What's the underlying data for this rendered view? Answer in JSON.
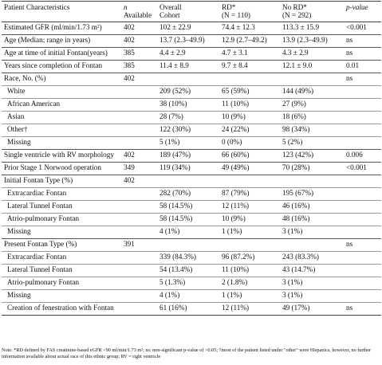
{
  "header": {
    "col0": "Patient Characteristics",
    "col1_line1": "n",
    "col1_line2": "Available",
    "col2_line1": "Overall",
    "col2_line2": "Cohort",
    "col3_line1": "RD*",
    "col3_line2": "(N = 110)",
    "col4_line1": "No RD*",
    "col4_line2": "(N = 292)",
    "col5": "p-value"
  },
  "rows": [
    {
      "label": "Estimated GFR (ml/min/1.73 m²)",
      "n": "402",
      "overall": "102 ± 22.9",
      "rd": "74.4 ± 12.3",
      "nord": "113.3 ± 15.9",
      "p": "<0.001",
      "style": "sep"
    },
    {
      "label": "Age (Median; range in years)",
      "n": "402",
      "overall": "13.7 (2.3–49.9)",
      "rd": "12.9 (2.7–49.2)",
      "nord": "13.9 (2.3–49.9)",
      "p": "ns",
      "style": "sep"
    },
    {
      "label": "Age at time of initial Fontan(years)",
      "n": "385",
      "overall": "4.4 ± 2.9",
      "rd": "4.7 ± 3.1",
      "nord": "4.3 ± 2.9",
      "p": "ns",
      "style": "sep"
    },
    {
      "label": "Years since completion of Fontan",
      "n": "385",
      "overall": "11.4 ± 8.9",
      "rd": "9.7 ± 8.4",
      "nord": "12.1 ± 9.0",
      "p": "0.01",
      "style": "sep"
    },
    {
      "label": "Race, No. (%)",
      "n": "402",
      "overall": "",
      "rd": "",
      "nord": "",
      "p": "ns",
      "style": "sep"
    },
    {
      "label": "White",
      "n": "",
      "overall": "209 (52%)",
      "rd": "65 (59%)",
      "nord": "144 (49%)",
      "p": "",
      "style": "thin",
      "indent": true
    },
    {
      "label": "African American",
      "n": "",
      "overall": "38 (10%)",
      "rd": "11 (10%)",
      "nord": "27 (9%)",
      "p": "",
      "style": "thin",
      "indent": true
    },
    {
      "label": "Asian",
      "n": "",
      "overall": "28 (7%)",
      "rd": "10 (9%)",
      "nord": "18 (6%)",
      "p": "",
      "style": "thin",
      "indent": true
    },
    {
      "label": "Other†",
      "n": "",
      "overall": "122 (30%)",
      "rd": "24 (22%)",
      "nord": "98 (34%)",
      "p": "",
      "style": "thin",
      "indent": true
    },
    {
      "label": "Missing",
      "n": "",
      "overall": "5 (1%)",
      "rd": "0 (0%)",
      "nord": "5 (2%)",
      "p": "",
      "style": "thin",
      "indent": true
    },
    {
      "label": "Single ventricle with RV morphology",
      "n": "402",
      "overall": "189 (47%)",
      "rd": "66 (60%)",
      "nord": "123 (42%)",
      "p": "0.006",
      "style": "sep"
    },
    {
      "label": "Prior Stage 1 Norwood operation",
      "n": "349",
      "overall": "119 (34%)",
      "rd": "49 (49%)",
      "nord": "70 (28%)",
      "p": "<0.001",
      "style": "sep"
    },
    {
      "label": "Initial Fontan Type (%)",
      "n": "402",
      "overall": "",
      "rd": "",
      "nord": "",
      "p": "",
      "style": "sep"
    },
    {
      "label": "Extracardiac Fontan",
      "n": "",
      "overall": "282 (70%)",
      "rd": "87 (79%)",
      "nord": "195 (67%)",
      "p": "",
      "style": "thin",
      "indent": true
    },
    {
      "label": "Lateral Tunnel Fontan",
      "n": "",
      "overall": "58 (14.5%)",
      "rd": "12 (11%)",
      "nord": "46 (16%)",
      "p": "",
      "style": "thin",
      "indent": true
    },
    {
      "label": "Atrio-pulmonary Fontan",
      "n": "",
      "overall": "58 (14.5%)",
      "rd": "10 (9%)",
      "nord": "48 (16%)",
      "p": "",
      "style": "thin",
      "indent": true
    },
    {
      "label": "Missing",
      "n": "",
      "overall": "4 (1%)",
      "rd": "1 (1%)",
      "nord": "3 (1%)",
      "p": "",
      "style": "thin",
      "indent": true
    },
    {
      "label": "Present Fontan Type (%)",
      "n": "391",
      "overall": "",
      "rd": "",
      "nord": "",
      "p": "ns",
      "style": "sep"
    },
    {
      "label": "Extracardiac Fontan",
      "n": "",
      "overall": "339 (84.3%)",
      "rd": "96 (87.2%)",
      "nord": "243 (83.3%)",
      "p": "",
      "style": "thin",
      "indent": true
    },
    {
      "label": "Lateral Tunnel Fontan",
      "n": "",
      "overall": "54 (13.4%)",
      "rd": "11 (10%)",
      "nord": "43 (14.7%)",
      "p": "",
      "style": "thin",
      "indent": true
    },
    {
      "label": "Atrio-pulmonary Fontan",
      "n": "",
      "overall": "5 (1.3%)",
      "rd": "2 (1.8%)",
      "nord": "3 (1%)",
      "p": "",
      "style": "thin",
      "indent": true
    },
    {
      "label": "Missing",
      "n": "",
      "overall": "4 (1%)",
      "rd": "1 (1%)",
      "nord": "3 (1%)",
      "p": "",
      "style": "thin",
      "indent": true
    },
    {
      "label": "Creation of fenestration with Fontan",
      "n": "",
      "overall": "61 (16%)",
      "rd": "12 (11%)",
      "nord": "49 (17%)",
      "p": "ns",
      "style": "thin",
      "indent": true
    }
  ],
  "note": "Note: *RD defined by FAS creatinine-based eGFR <90 ml/min/1.73 m²; ns: non-significant p-value of >0.05; †most of the patient listed under \"other\" were Hispanics, however, no further information available about actual race of this ethnic group; RV = right ventricle"
}
